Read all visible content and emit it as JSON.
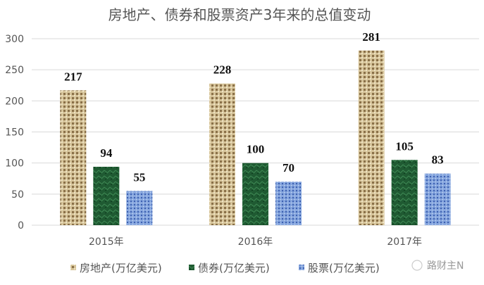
{
  "chart_data": {
    "type": "bar",
    "title": "房地产、债券和股票资产3年来的总值变动",
    "categories": [
      "2015年",
      "2016年",
      "2017年"
    ],
    "series": [
      {
        "name": "房地产(万亿美元)",
        "values": [
          217,
          228,
          281
        ],
        "color": "#c9b48a"
      },
      {
        "name": "债券(万亿美元)",
        "values": [
          94,
          100,
          105
        ],
        "color": "#1f5a32"
      },
      {
        "name": "股票(万亿美元)",
        "values": [
          55,
          70,
          83
        ],
        "color": "#7f9fd8"
      }
    ],
    "ylim": [
      0,
      300
    ],
    "yticks": [
      0,
      50,
      100,
      150,
      200,
      250,
      300
    ],
    "grid": true,
    "legend": "bottom",
    "data_labels": true
  },
  "watermark": "路财主N"
}
